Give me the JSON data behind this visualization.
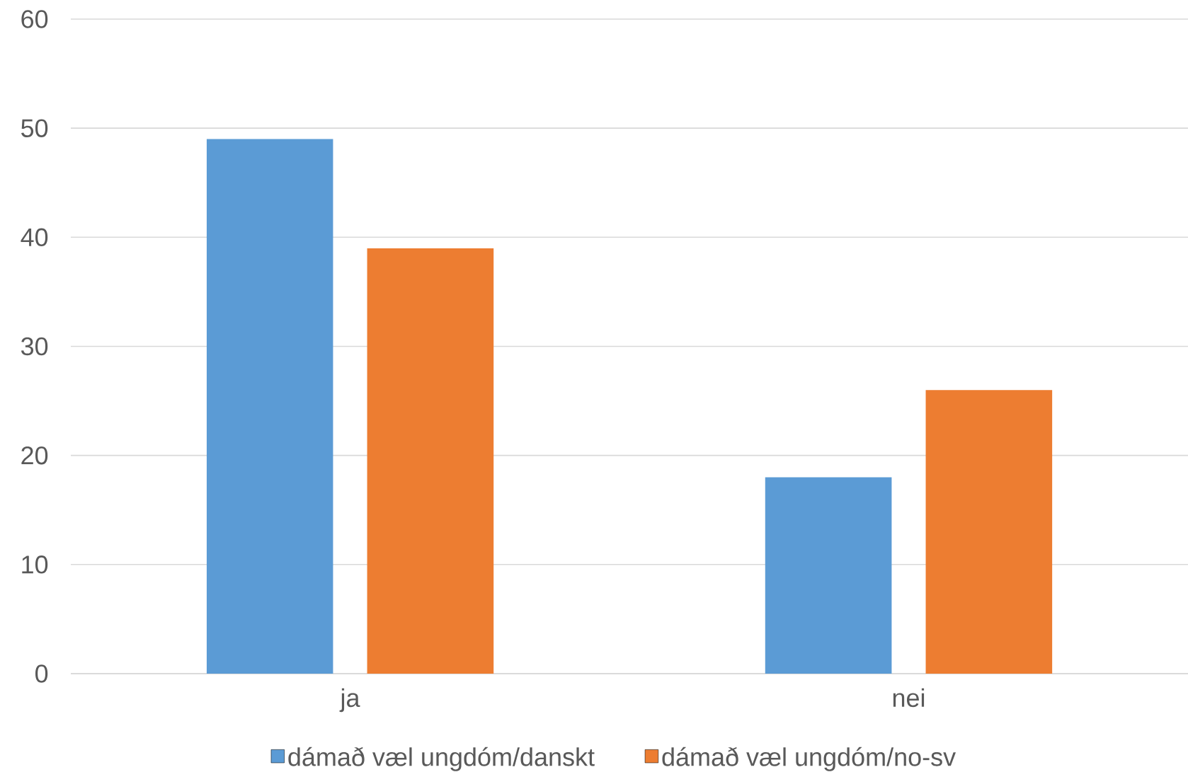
{
  "chart_data": {
    "type": "bar",
    "categories": [
      "ja",
      "nei"
    ],
    "series": [
      {
        "name": "dámað væl ungdóm/danskt",
        "color": "#5b9bd5",
        "values": [
          49,
          18
        ]
      },
      {
        "name": "dámað væl ungdóm/no-sv",
        "color": "#ed7d31",
        "values": [
          39,
          26
        ]
      }
    ],
    "ylim": [
      0,
      60
    ],
    "yticks": [
      0,
      10,
      20,
      30,
      40,
      50,
      60
    ],
    "grid": "y",
    "legend": "bottom"
  }
}
